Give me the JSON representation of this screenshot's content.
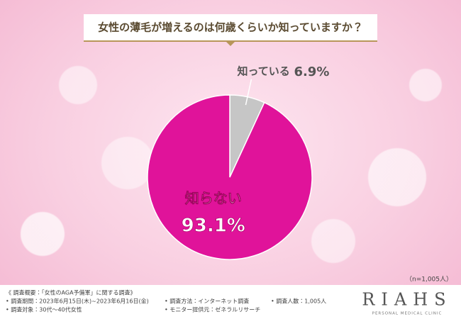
{
  "header": {
    "title": "女性の薄毛が増えるのは何歳くらいか知っていますか？"
  },
  "chart_data": {
    "type": "pie",
    "categories": [
      "知っている",
      "知らない"
    ],
    "values": [
      6.9,
      93.1
    ],
    "value_labels": [
      "6.9%",
      "93.1%"
    ],
    "colors": [
      "#c6c6c6",
      "#e0139a"
    ]
  },
  "note": "（n=1,005人）",
  "footer": {
    "survey_title": "《 調査概要：「女性のAGA予備軍」に関する調査》",
    "items": [
      "• 調査期間：2023年6月15日(木)~2023年6月16日(金)",
      "• 調査方法：インターネット調査",
      "• 調査人数：1,005人",
      "• 調査対象：30代～40代女性",
      "• モニター提供元：ゼネラルリサーチ"
    ]
  },
  "logo": {
    "name": "RIAHS",
    "tagline": "PERSONAL MEDICAL CLINIC"
  }
}
